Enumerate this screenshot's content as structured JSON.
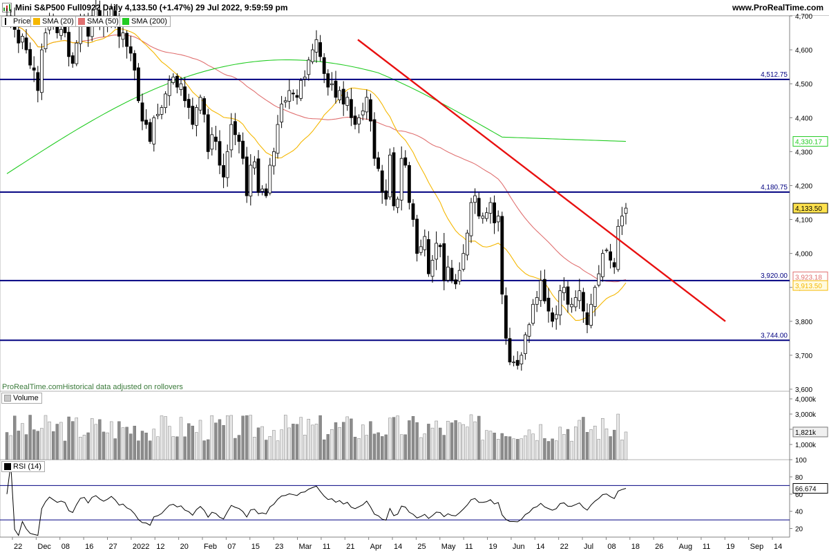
{
  "header": {
    "title": "Mini S&P500 Full0922 Daily 4,133.50 (+1.47%) 29 Jul 2022, 9:59:59 pm",
    "site": "www.ProRealTime.com"
  },
  "legend": {
    "price": {
      "label": "Price",
      "color": "#000000"
    },
    "sma20": {
      "label": "SMA (20)",
      "color": "#f5b700"
    },
    "sma50": {
      "label": "SMA (50)",
      "color": "#e07070"
    },
    "sma200": {
      "label": "SMA (200)",
      "color": "#22cc22"
    }
  },
  "notes": {
    "source": "ProRealTime.comHistorical data adjusted on rollovers"
  },
  "volume_legend": {
    "label": "Volume"
  },
  "rsi_legend": {
    "label": "RSI (14)"
  },
  "colors": {
    "levels": "#000080",
    "trendline": "#e81010",
    "bull": "#ffffff",
    "bear": "#000000"
  },
  "chart_data": [
    {
      "type": "candlestick",
      "name": "price",
      "ylim": [
        3600,
        4700
      ],
      "yticks": [
        3600,
        3700,
        3800,
        3900,
        4000,
        4100,
        4200,
        4300,
        4400,
        4500,
        4600,
        4700
      ],
      "ytick_labels": [
        "3,600",
        "3,700",
        "3,800",
        "3,900",
        "4,000",
        "4,100",
        "4,200",
        "4,300",
        "4,400",
        "4,500",
        "4,600",
        "4,700"
      ],
      "x_labels": [
        "22",
        "Dec",
        "08",
        "16",
        "27",
        "2022",
        "12",
        "20",
        "Feb",
        "07",
        "15",
        "23",
        "Mar",
        "11",
        "21",
        "Apr",
        "14",
        "25",
        "May",
        "11",
        "19",
        "Jun",
        "14",
        "22",
        "Jul",
        "08",
        "18",
        "26",
        "Aug",
        "11",
        "19",
        "Sep",
        "14"
      ],
      "levels": [
        {
          "value": 4512.75,
          "label": "4,512.75"
        },
        {
          "value": 4180.75,
          "label": "4,180.75"
        },
        {
          "value": 3920.0,
          "label": "3,920.00"
        },
        {
          "value": 3744.0,
          "label": "3,744.00"
        }
      ],
      "trendline": {
        "from": {
          "date": "2022-03-29",
          "value": 4630
        },
        "to": {
          "date": "2022-08-09",
          "value": 3800
        }
      },
      "last_values": [
        {
          "name": "SMA (200)",
          "value": 4330.17,
          "label": "4,330.17"
        },
        {
          "name": "Price",
          "value": 4133.5,
          "label": "4,133.50"
        },
        {
          "name": "SMA (50)",
          "value": 3923.18,
          "label": "3,923.18"
        },
        {
          "name": "SMA (20)",
          "value": 3913.5,
          "label": "3,913.50"
        }
      ],
      "closes": [
        4690,
        4700,
        4660,
        4620,
        4640,
        4600,
        4555,
        4540,
        4480,
        4600,
        4650,
        4690,
        4670,
        4650,
        4660,
        4650,
        4580,
        4560,
        4620,
        4680,
        4690,
        4640,
        4700,
        4720,
        4690,
        4670,
        4690,
        4720,
        4690,
        4640,
        4650,
        4610,
        4590,
        4540,
        4450,
        4390,
        4380,
        4330,
        4400,
        4410,
        4430,
        4470,
        4510,
        4520,
        4490,
        4500,
        4450,
        4430,
        4380,
        4430,
        4460,
        4410,
        4300,
        4350,
        4330,
        4260,
        4225,
        4300,
        4380,
        4350,
        4330,
        4280,
        4170,
        4260,
        4270,
        4180,
        4190,
        4170,
        4260,
        4300,
        4380,
        4440,
        4450,
        4480,
        4470,
        4460,
        4510,
        4520,
        4570,
        4600,
        4630,
        4580,
        4530,
        4490,
        4500,
        4460,
        4480,
        4440,
        4460,
        4400,
        4380,
        4400,
        4420,
        4460,
        4390,
        4280,
        4250,
        4180,
        4160,
        4290,
        4140,
        4160,
        4280,
        4260,
        4150,
        4100,
        4000,
        4020,
        4050,
        3940,
        3980,
        4030,
        4020,
        3920,
        3960,
        3920,
        3910,
        3950,
        4000,
        4060,
        4150,
        4170,
        4110,
        4110,
        4120,
        4150,
        4090,
        4110,
        3880,
        3750,
        3680,
        3680,
        3670,
        3700,
        3760,
        3790,
        3850,
        3870,
        3920,
        3860,
        3830,
        3800,
        3820,
        3890,
        3900,
        3850,
        3850,
        3870,
        3890,
        3830,
        3790,
        3850,
        3900,
        3940,
        4000,
        4010,
        3980,
        3960,
        4080,
        4110,
        4133.5
      ],
      "volume": {
        "ylim": [
          0,
          4500
        ],
        "yticks": [
          1000,
          2000,
          3000,
          4000
        ],
        "ytick_labels": [
          "1,000k",
          "2,000k",
          "3,000k",
          "4,000k"
        ],
        "last": 1821,
        "last_label": "1,821k"
      },
      "rsi": {
        "ylim": [
          10,
          100
        ],
        "yticks": [
          20,
          40,
          60,
          80,
          100
        ],
        "levels": [
          70,
          30
        ],
        "last": 66.674,
        "last_label": "66.674"
      }
    }
  ]
}
